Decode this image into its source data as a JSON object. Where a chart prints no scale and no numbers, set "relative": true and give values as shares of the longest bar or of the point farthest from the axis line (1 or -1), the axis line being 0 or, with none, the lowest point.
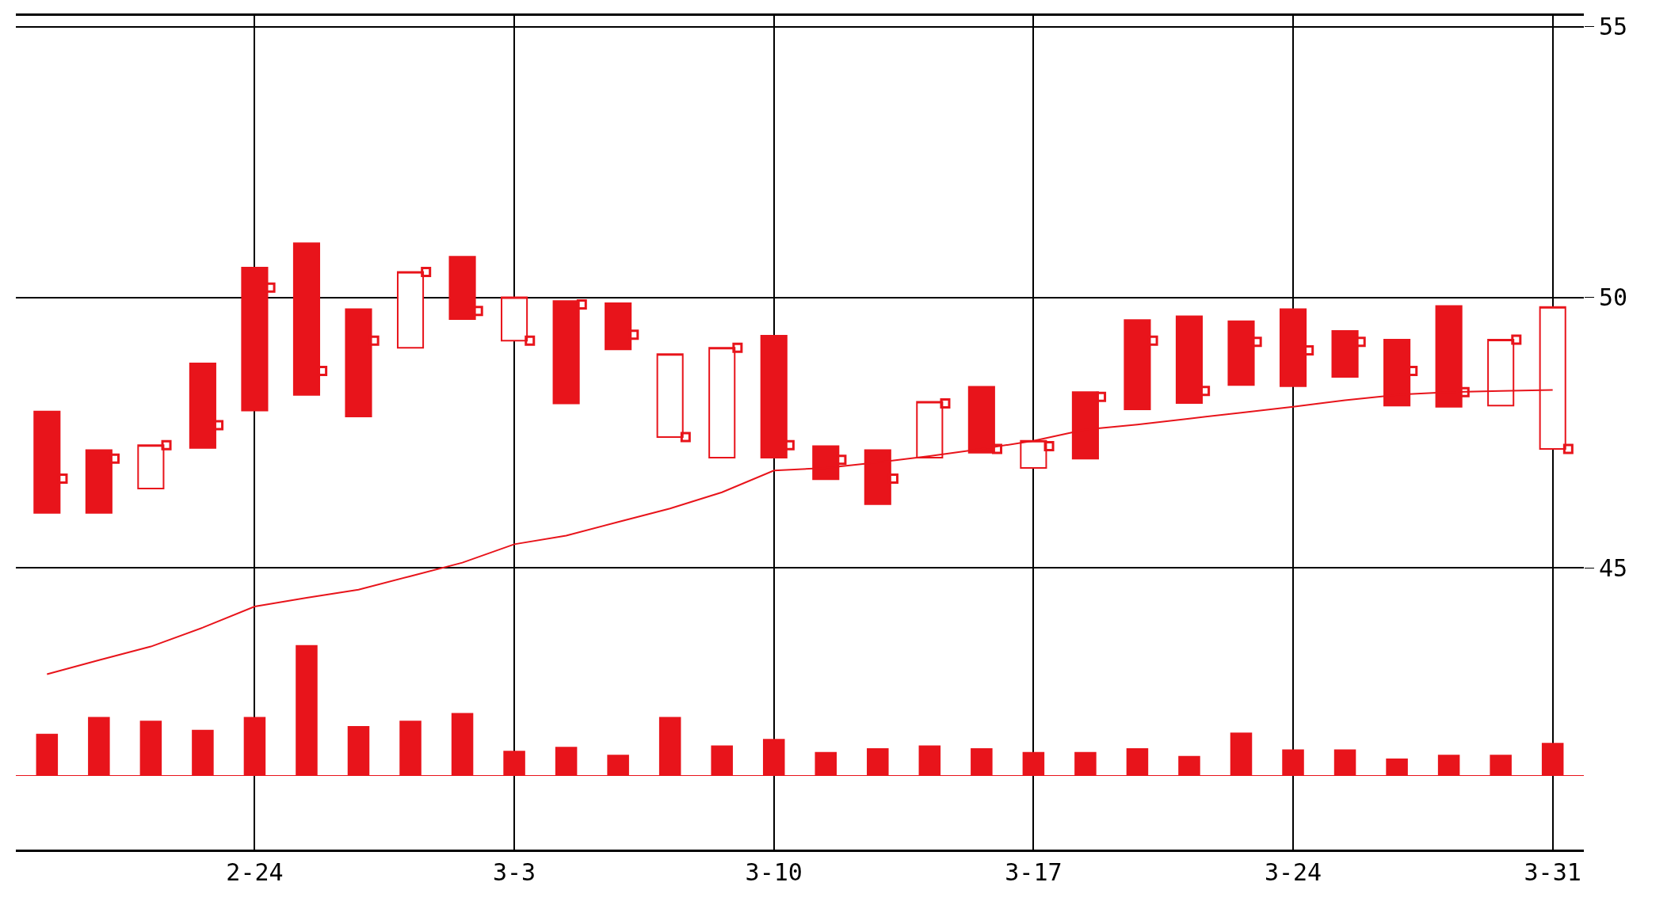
{
  "chart_data": [
    {
      "type": "candlestick",
      "categories": [
        null,
        null,
        null,
        null,
        "2-24",
        null,
        null,
        null,
        null,
        "3-3",
        null,
        null,
        null,
        null,
        "3-10",
        null,
        null,
        null,
        null,
        "3-17",
        null,
        null,
        null,
        null,
        "3-24",
        null,
        null,
        null,
        null,
        "3-31"
      ],
      "ohlc": [
        [
          47.89,
          47.89,
          46.02,
          46.02
        ],
        [
          47.18,
          47.18,
          46.02,
          46.02
        ],
        [
          46.47,
          47.27,
          46.47,
          47.27
        ],
        [
          48.78,
          48.78,
          47.22,
          47.22
        ],
        [
          50.55,
          50.55,
          47.91,
          47.91
        ],
        [
          51.0,
          51.0,
          48.2,
          48.2
        ],
        [
          49.78,
          49.78,
          47.8,
          47.8
        ],
        [
          49.07,
          50.47,
          49.07,
          50.47
        ],
        [
          50.75,
          50.75,
          49.6,
          49.6
        ],
        [
          49.2,
          50.0,
          49.2,
          50.0
        ],
        [
          49.93,
          49.93,
          48.04,
          48.04
        ],
        [
          49.89,
          49.89,
          49.04,
          49.04
        ],
        [
          47.42,
          48.95,
          47.42,
          48.95
        ],
        [
          47.04,
          49.07,
          47.04,
          49.07
        ],
        [
          49.29,
          49.29,
          47.04,
          47.04
        ],
        [
          47.25,
          47.25,
          46.64,
          46.64
        ],
        [
          47.18,
          47.18,
          46.18,
          46.18
        ],
        [
          47.04,
          48.07,
          47.04,
          48.07
        ],
        [
          48.35,
          48.35,
          47.13,
          47.13
        ],
        [
          46.85,
          47.35,
          46.85,
          47.35
        ],
        [
          48.25,
          48.25,
          47.02,
          47.02
        ],
        [
          49.58,
          49.58,
          47.93,
          47.93
        ],
        [
          49.65,
          49.65,
          48.05,
          48.05
        ],
        [
          49.56,
          49.56,
          48.38,
          48.38
        ],
        [
          49.78,
          49.78,
          48.36,
          48.36
        ],
        [
          49.38,
          49.38,
          48.53,
          48.53
        ],
        [
          49.22,
          49.22,
          48.0,
          48.0
        ],
        [
          49.84,
          49.84,
          47.98,
          47.98
        ],
        [
          48.0,
          49.22,
          48.0,
          49.22
        ],
        [
          47.2,
          49.82,
          47.2,
          49.82
        ]
      ],
      "color": "#e8141b",
      "series": [
        {
          "type": "line",
          "color": "#e8141b",
          "values": [
            43.04,
            43.3,
            43.55,
            43.9,
            44.29,
            44.45,
            44.6,
            44.85,
            45.1,
            45.44,
            45.6,
            45.85,
            46.1,
            46.4,
            46.8,
            46.85,
            46.95,
            47.07,
            47.2,
            47.35,
            47.56,
            47.65,
            47.76,
            47.87,
            47.98,
            48.1,
            48.2,
            48.25,
            48.27,
            48.29
          ]
        },
        {
          "type": "scatter",
          "marker": "square",
          "color": "#e8141b",
          "values": [
            46.65,
            47.02,
            47.27,
            47.64,
            50.18,
            48.64,
            49.2,
            50.47,
            49.75,
            49.2,
            49.87,
            49.31,
            47.42,
            49.07,
            47.27,
            47.0,
            46.65,
            48.04,
            47.2,
            47.25,
            48.16,
            49.2,
            48.27,
            49.18,
            49.02,
            49.18,
            48.64,
            48.25,
            49.22,
            47.2
          ]
        }
      ],
      "ylim": [
        39.8,
        55.2
      ],
      "yticks": [
        45,
        50,
        55
      ],
      "grid": true
    },
    {
      "type": "bar",
      "relative": true,
      "tick_labels": false,
      "color": "#e8141b",
      "categories": [
        null,
        null,
        null,
        null,
        null,
        null,
        null,
        null,
        null,
        null,
        null,
        null,
        null,
        null,
        null,
        null,
        null,
        null,
        null,
        null,
        null,
        null,
        null,
        null,
        null,
        null,
        null,
        null,
        null,
        null
      ],
      "values": [
        0.32,
        0.45,
        0.42,
        0.35,
        0.45,
        1,
        0.38,
        0.42,
        0.48,
        0.19,
        0.22,
        0.16,
        0.45,
        0.23,
        0.28,
        0.18,
        0.21,
        0.23,
        0.21,
        0.18,
        0.18,
        0.21,
        0.15,
        0.33,
        0.2,
        0.2,
        0.13,
        0.16,
        0.16,
        0.25
      ]
    }
  ]
}
